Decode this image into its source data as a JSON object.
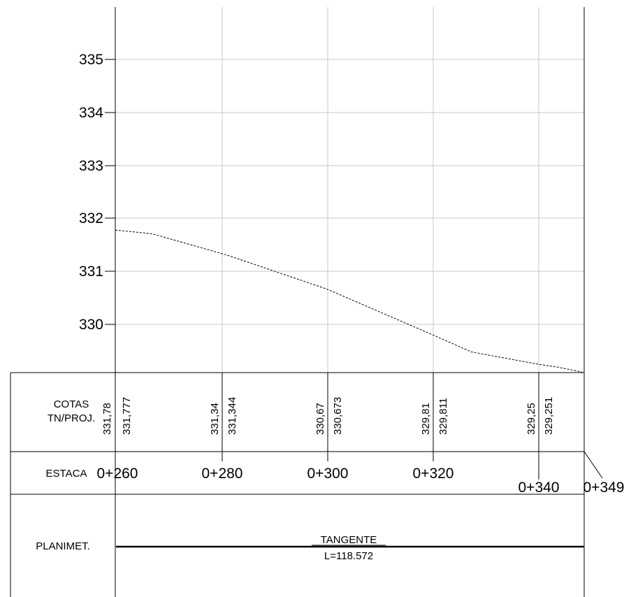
{
  "chart_data": {
    "type": "line",
    "ylim": [
      329.1,
      336.2
    ],
    "xlim": [
      260,
      348.5
    ],
    "y_ticks": [
      "335",
      "334",
      "333",
      "332",
      "331",
      "330"
    ],
    "profile_terrain": {
      "x": [
        260,
        267,
        280,
        282,
        300,
        320,
        327.5,
        340,
        344,
        348.5
      ],
      "y": [
        331.78,
        331.71,
        331.34,
        331.28,
        330.67,
        329.81,
        329.48,
        329.25,
        329.19,
        329.1
      ]
    },
    "cotas": [
      {
        "tn": "331,78",
        "proj": "331,777"
      },
      {
        "tn": "331,34",
        "proj": "331,344"
      },
      {
        "tn": "330,67",
        "proj": "330,673"
      },
      {
        "tn": "329,81",
        "proj": "329,811"
      },
      {
        "tn": "329,25",
        "proj": "329,251"
      }
    ],
    "estacas": [
      "0+260",
      "0+280",
      "0+300",
      "0+320",
      "0+340",
      "0+349"
    ]
  },
  "labels": {
    "cotas_line1": "COTAS",
    "cotas_line2": "TN/PROJ.",
    "estaca": "ESTACA",
    "planimet": "PLANIMET.",
    "tangente": "TANGENTE",
    "length": "L=118.572"
  }
}
